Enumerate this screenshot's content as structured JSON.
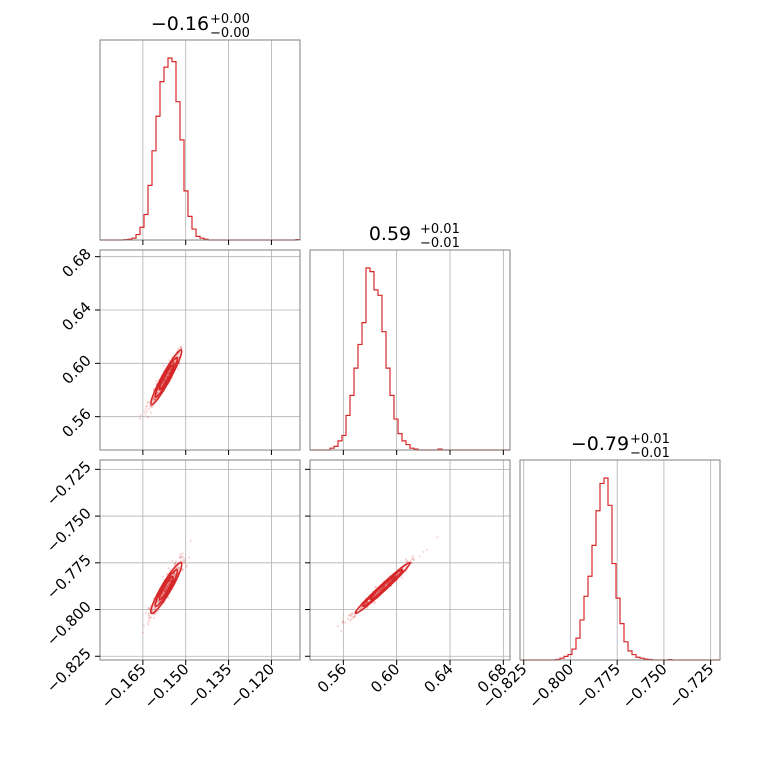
{
  "colors": {
    "accent": "#d62728",
    "grid": "#b0b0b0",
    "frame": "#808080",
    "background": "#ffffff"
  },
  "chart_data": {
    "type": "corner",
    "grid": true,
    "parameters": [
      {
        "range": [
          -0.18,
          -0.11
        ],
        "ticks": [
          -0.165,
          -0.15,
          -0.135,
          -0.12
        ],
        "tick_labels": [
          "−0.165",
          "−0.150",
          "−0.135",
          "−0.120"
        ]
      },
      {
        "range": [
          0.535,
          0.685
        ],
        "ticks": [
          0.56,
          0.6,
          0.64,
          0.68
        ],
        "tick_labels": [
          "0.56",
          "0.60",
          "0.64",
          "0.68"
        ]
      },
      {
        "range": [
          -0.827,
          -0.72
        ],
        "ticks": [
          -0.825,
          -0.8,
          -0.775,
          -0.75,
          -0.725
        ],
        "tick_labels": [
          "−0.825",
          "−0.800",
          "−0.775",
          "−0.750",
          "−0.725"
        ]
      }
    ],
    "titles": [
      {
        "value": "−0.16",
        "plus": "+0.00",
        "minus": "−0.00"
      },
      {
        "value": "0.59",
        "plus": "+0.01",
        "minus": "−0.01"
      },
      {
        "value": "−0.79",
        "plus": "+0.01",
        "minus": "−0.01"
      }
    ],
    "histograms": [
      {
        "start": -0.18,
        "bin_width": 0.0014,
        "counts": [
          0,
          0,
          0,
          0,
          0,
          0,
          0.002,
          0.004,
          0.01,
          0.03,
          0.07,
          0.14,
          0.3,
          0.49,
          0.68,
          0.87,
          0.95,
          1.0,
          0.98,
          0.76,
          0.55,
          0.27,
          0.13,
          0.06,
          0.02,
          0.01,
          0.004,
          0,
          0,
          0,
          0,
          0,
          0,
          0,
          0,
          0,
          0,
          0,
          0,
          0,
          0,
          0,
          0,
          0,
          0,
          0,
          0,
          0,
          0,
          0.002
        ]
      },
      {
        "start": 0.535,
        "bin_width": 0.003,
        "counts": [
          0,
          0,
          0,
          0,
          0,
          0.01,
          0.02,
          0.05,
          0.08,
          0.19,
          0.3,
          0.45,
          0.58,
          0.7,
          1.0,
          0.98,
          0.88,
          0.85,
          0.65,
          0.45,
          0.3,
          0.17,
          0.09,
          0.05,
          0.03,
          0.01,
          0.005,
          0,
          0,
          0,
          0,
          0,
          0.005,
          0,
          0,
          0,
          0,
          0,
          0,
          0,
          0,
          0,
          0,
          0,
          0,
          0,
          0,
          0,
          0,
          0
        ]
      },
      {
        "start": -0.827,
        "bin_width": 0.00214,
        "counts": [
          0,
          0,
          0,
          0,
          0,
          0,
          0,
          0,
          0,
          0.003,
          0.01,
          0.02,
          0.03,
          0.06,
          0.12,
          0.22,
          0.35,
          0.46,
          0.63,
          0.82,
          0.97,
          1.0,
          0.85,
          0.53,
          0.34,
          0.2,
          0.1,
          0.05,
          0.03,
          0.015,
          0.01,
          0.005,
          0.003,
          0,
          0,
          0,
          0,
          0.002,
          0,
          0,
          0,
          0,
          0,
          0,
          0,
          0,
          0,
          0,
          0,
          0
        ]
      }
    ],
    "correlations": [
      {
        "pair": [
          0,
          1
        ],
        "center": [
          -0.1568,
          0.5895
        ],
        "sd": [
          0.0027,
          0.0103
        ],
        "rho": 0.95
      },
      {
        "pair": [
          0,
          2
        ],
        "center": [
          -0.1568,
          -0.7885
        ],
        "sd": [
          0.0027,
          0.0068
        ],
        "rho": 0.93
      },
      {
        "pair": [
          1,
          2
        ],
        "center": [
          0.5895,
          -0.7885
        ],
        "sd": [
          0.0103,
          0.0068
        ],
        "rho": 0.985
      }
    ]
  }
}
